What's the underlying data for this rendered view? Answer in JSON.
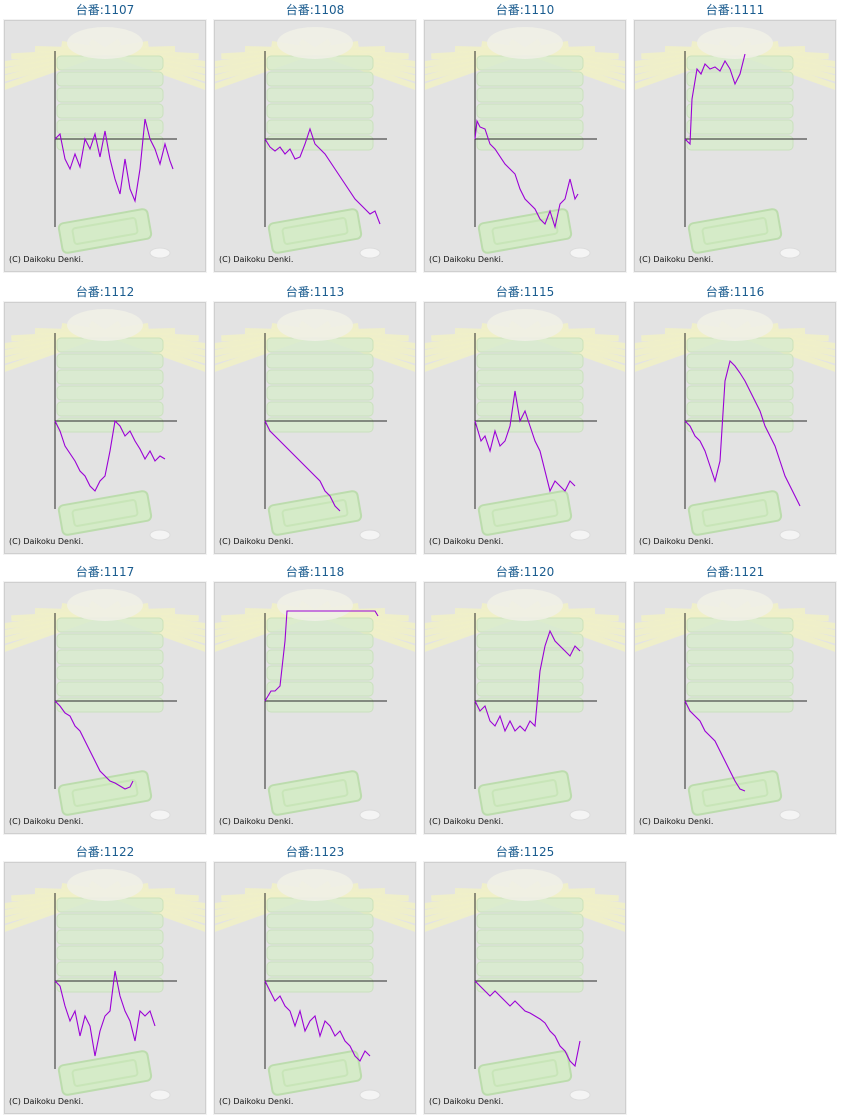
{
  "page": {
    "colors": {
      "title": "#1a5c8f",
      "line": "#9b00d6",
      "axis": "#2a2a2a",
      "panel_bg": "#e3e3e3"
    }
  },
  "machines": [
    {
      "title": "台番:1107",
      "copyright": "(C) Daikoku Denki."
    },
    {
      "title": "台番:1108",
      "copyright": "(C) Daikoku Denki."
    },
    {
      "title": "台番:1110",
      "copyright": "(C) Daikoku Denki."
    },
    {
      "title": "台番:1111",
      "copyright": "(C) Daikoku Denki."
    },
    {
      "title": "台番:1112",
      "copyright": "(C) Daikoku Denki."
    },
    {
      "title": "台番:1113",
      "copyright": "(C) Daikoku Denki."
    },
    {
      "title": "台番:1115",
      "copyright": "(C) Daikoku Denki."
    },
    {
      "title": "台番:1116",
      "copyright": "(C) Daikoku Denki."
    },
    {
      "title": "台番:1117",
      "copyright": "(C) Daikoku Denki."
    },
    {
      "title": "台番:1118",
      "copyright": "(C) Daikoku Denki."
    },
    {
      "title": "台番:1120",
      "copyright": "(C) Daikoku Denki."
    },
    {
      "title": "台番:1121",
      "copyright": "(C) Daikoku Denki."
    },
    {
      "title": "台番:1122",
      "copyright": "(C) Daikoku Denki."
    },
    {
      "title": "台番:1123",
      "copyright": "(C) Daikoku Denki."
    },
    {
      "title": "台番:1125",
      "copyright": "(C) Daikoku Denki."
    }
  ]
}
